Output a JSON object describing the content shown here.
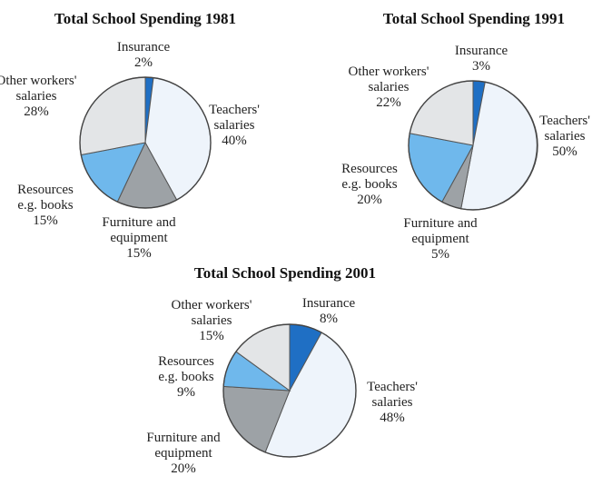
{
  "colors": {
    "Insurance": "#1f6fc4",
    "Teachers' salaries": "#eef4fb",
    "Furniture and equipment": "#9da2a6",
    "Resources e.g. books": "#6fb8ec",
    "Other workers' salaries": "#e3e5e7"
  },
  "chart_data": [
    {
      "type": "pie",
      "title": "Total School Spending 1981",
      "categories": [
        "Insurance",
        "Teachers' salaries",
        "Furniture and equipment",
        "Resources e.g. books",
        "Other workers' salaries"
      ],
      "values": [
        2,
        40,
        15,
        15,
        28
      ],
      "labels": [
        {
          "lines": [
            "Insurance",
            "2%"
          ]
        },
        {
          "lines": [
            "Teachers'",
            "salaries",
            "40%"
          ]
        },
        {
          "lines": [
            "Furniture and",
            "equipment",
            "15%"
          ]
        },
        {
          "lines": [
            "Resources",
            "e.g. books",
            "15%"
          ]
        },
        {
          "lines": [
            "Other workers'",
            "salaries",
            "28%"
          ]
        }
      ]
    },
    {
      "type": "pie",
      "title": "Total School Spending 1991",
      "categories": [
        "Insurance",
        "Teachers' salaries",
        "Furniture and equipment",
        "Resources e.g. books",
        "Other workers' salaries"
      ],
      "values": [
        3,
        50,
        5,
        20,
        22
      ],
      "labels": [
        {
          "lines": [
            "Insurance",
            "3%"
          ]
        },
        {
          "lines": [
            "Teachers'",
            "salaries",
            "50%"
          ]
        },
        {
          "lines": [
            "Furniture and",
            "equipment",
            "5%"
          ]
        },
        {
          "lines": [
            "Resources",
            "e.g. books",
            "20%"
          ]
        },
        {
          "lines": [
            "Other workers'",
            "salaries",
            "22%"
          ]
        }
      ]
    },
    {
      "type": "pie",
      "title": "Total School Spending 2001",
      "categories": [
        "Insurance",
        "Teachers' salaries",
        "Furniture and equipment",
        "Resources e.g. books",
        "Other workers' salaries"
      ],
      "values": [
        8,
        48,
        20,
        9,
        15
      ],
      "labels": [
        {
          "lines": [
            "Insurance",
            "8%"
          ]
        },
        {
          "lines": [
            "Teachers'",
            "salaries",
            "48%"
          ]
        },
        {
          "lines": [
            "Furniture and",
            "equipment",
            "20%"
          ]
        },
        {
          "lines": [
            "Resources",
            "e.g. books",
            "9%"
          ]
        },
        {
          "lines": [
            "Other workers'",
            "salaries",
            "15%"
          ]
        }
      ]
    }
  ]
}
